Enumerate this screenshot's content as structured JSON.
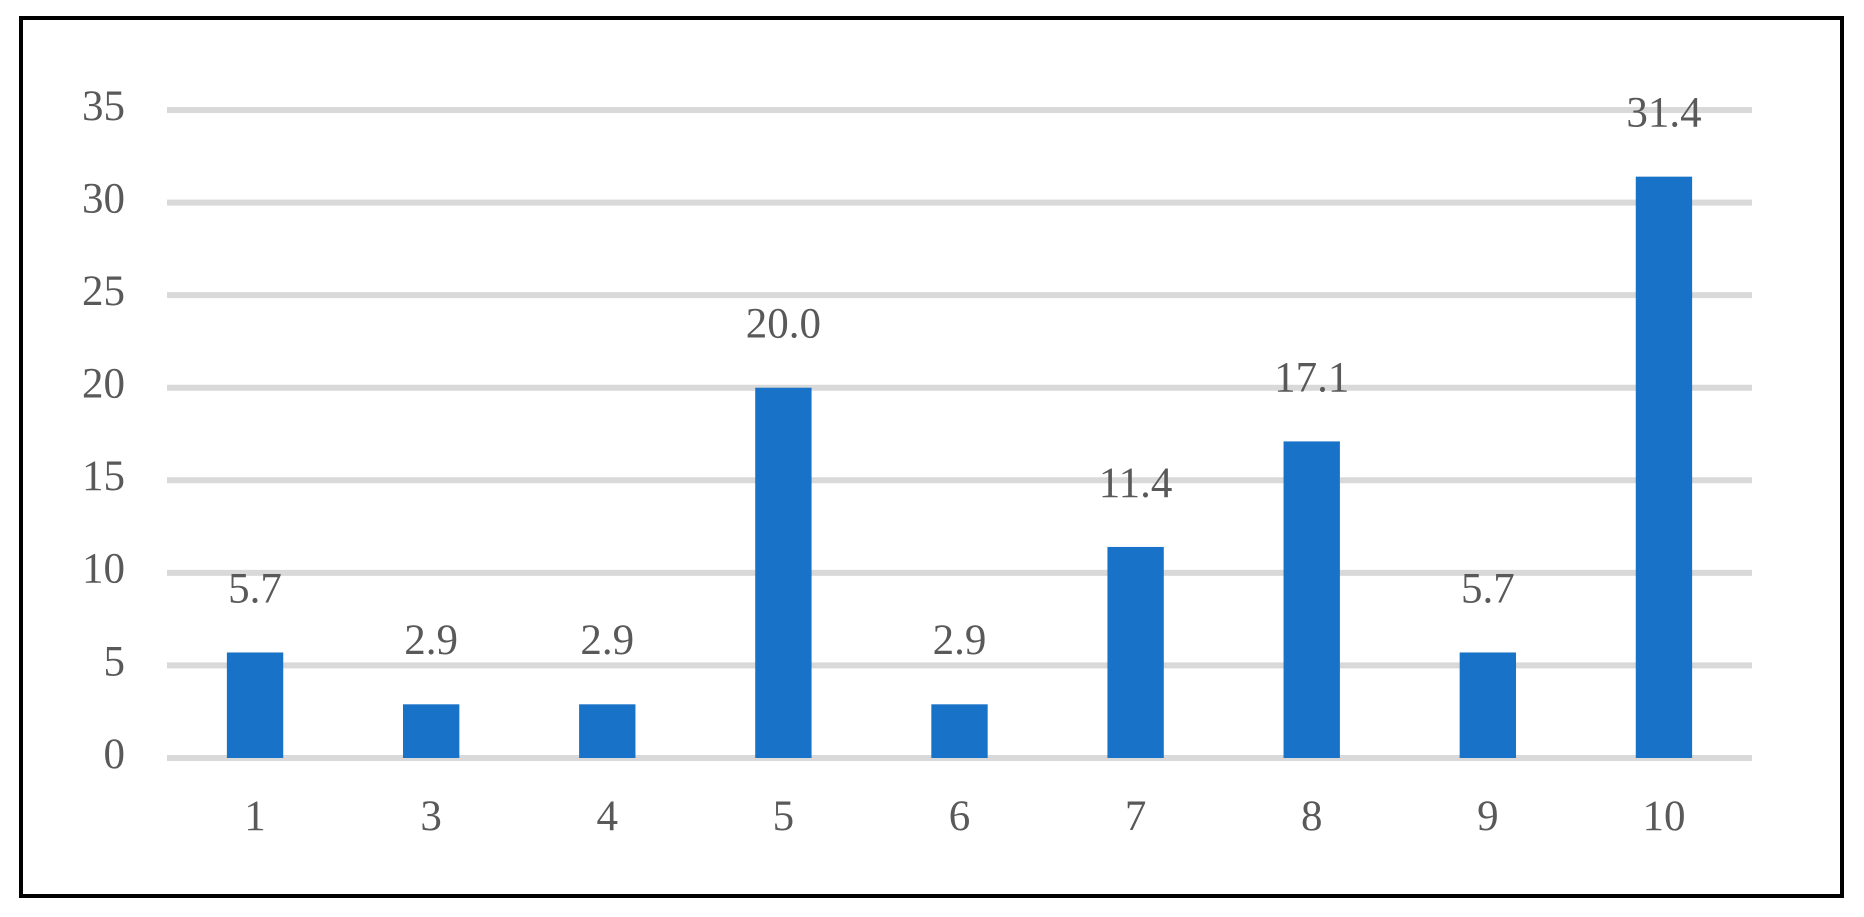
{
  "chart_data": {
    "type": "bar",
    "categories": [
      "1",
      "3",
      "4",
      "5",
      "6",
      "7",
      "8",
      "9",
      "10"
    ],
    "values": [
      5.7,
      2.9,
      2.9,
      20.0,
      2.9,
      11.4,
      17.1,
      5.7,
      31.4
    ],
    "value_labels": [
      "5.7",
      "2.9",
      "2.9",
      "20.0",
      "2.9",
      "11.4",
      "17.1",
      "5.7",
      "31.4"
    ],
    "color": "#1873c8",
    "ylim": [
      0,
      35
    ],
    "yticks": [
      0,
      5,
      10,
      15,
      20,
      25,
      30,
      35
    ],
    "grid": true
  }
}
